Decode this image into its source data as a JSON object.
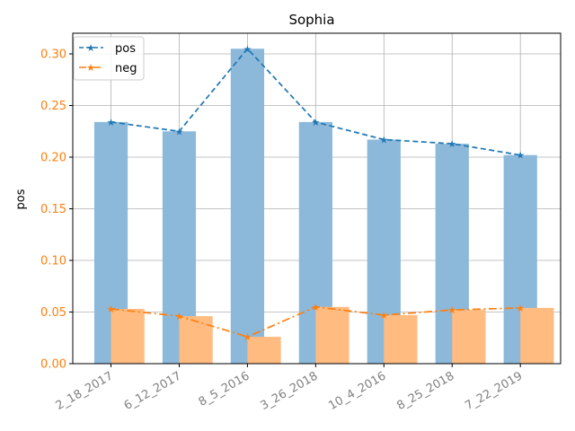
{
  "chart_data": {
    "type": "bar",
    "title": "Sophia",
    "xlabel": "",
    "ylabel": "pos",
    "ylim": [
      0,
      0.32
    ],
    "yticks": [
      "0.00",
      "0.05",
      "0.10",
      "0.15",
      "0.20",
      "0.25",
      "0.30"
    ],
    "categories": [
      "2_18_2017",
      "6_12_2017",
      "8_5_2016",
      "3_26_2018",
      "10_4_2016",
      "8_25_2018",
      "7_22_2019"
    ],
    "series": [
      {
        "name": "pos",
        "values": [
          0.234,
          0.225,
          0.305,
          0.234,
          0.217,
          0.213,
          0.202
        ],
        "color": "#1f77b4",
        "bar_color": "#8cb8da",
        "line_style": "dashed",
        "marker": "star"
      },
      {
        "name": "neg",
        "values": [
          0.053,
          0.046,
          0.026,
          0.055,
          0.047,
          0.052,
          0.054
        ],
        "color": "#ff7f0e",
        "bar_color": "#ffbb80",
        "line_style": "dashdot",
        "marker": "star"
      }
    ],
    "grid": true,
    "legend_position": "top-left",
    "colors": {
      "ytick": "#ff7f0e",
      "xtick": "#808080",
      "grid": "#b0b0b0"
    }
  }
}
